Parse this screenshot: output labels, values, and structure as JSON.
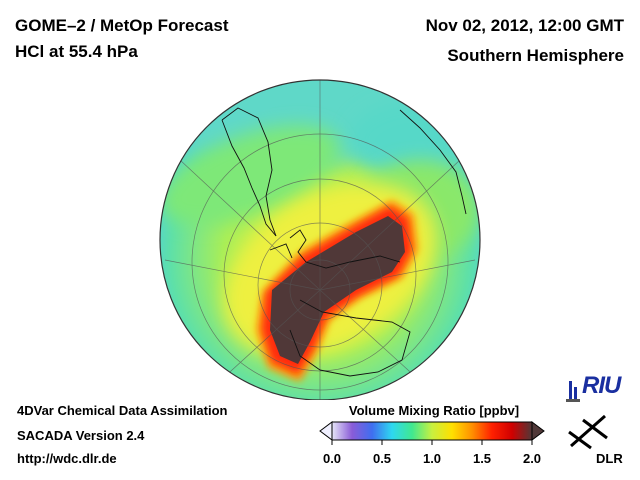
{
  "header": {
    "title_line1": "GOME–2 / MetOp Forecast",
    "title_line2": "HCl at 55.4 hPa",
    "date": "Nov 02, 2012, 12:00 GMT",
    "region": "Southern Hemisphere"
  },
  "footer": {
    "line1": "4DVar Chemical Data Assimilation",
    "line2": "SACADA Version 2.4",
    "line3": "http://wdc.dlr.de"
  },
  "colorbar": {
    "title": "Volume Mixing Ratio [ppbv]",
    "ticks": [
      "0.0",
      "0.5",
      "1.0",
      "1.5",
      "2.0"
    ],
    "tick_values": [
      0.0,
      0.5,
      1.0,
      1.5,
      2.0
    ],
    "colors": [
      "#e6e6f8",
      "#8a5cd8",
      "#3f6ef0",
      "#2ed8f0",
      "#40e890",
      "#c8f040",
      "#ffe000",
      "#ff9000",
      "#ff2000",
      "#d00000",
      "#503838"
    ]
  },
  "map": {
    "projection": "orthographic, south pole view",
    "field_colors": {
      "low": "#4fd8e0",
      "mid": "#9ef060",
      "high": "#f0f040",
      "rim": "#ff2a10",
      "max": "#503838"
    }
  },
  "logos": {
    "riu": "RIU",
    "dlr": "DLR"
  }
}
